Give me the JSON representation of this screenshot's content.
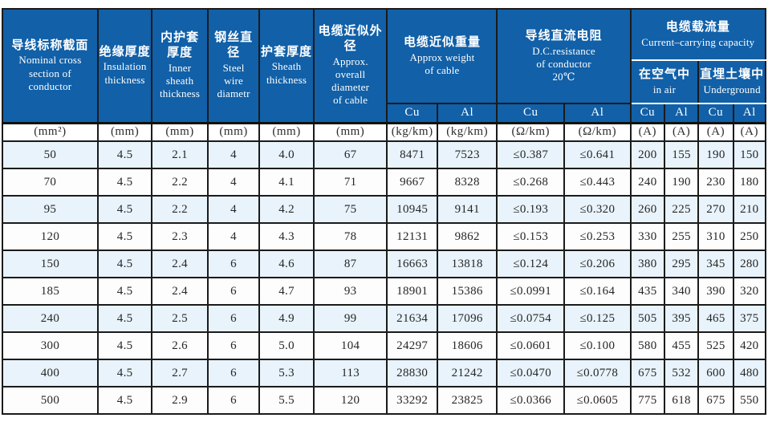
{
  "table": {
    "header": {
      "col1": {
        "zh": "导线标称截面",
        "en": "Nominal  cross\nsection of\nconductor"
      },
      "col2": {
        "zh": "绝缘厚度",
        "en": "Insulation\nthickness"
      },
      "col3": {
        "zh": "内护套\n厚度",
        "en": "Inner\nsheath\nthickness"
      },
      "col4": {
        "zh": "钢丝直径",
        "en": "Steel\nwire\ndiametr"
      },
      "col5": {
        "zh": "护套厚度",
        "en": "Sheath\nthickness"
      },
      "col6": {
        "zh": "电缆近似外径",
        "en": "Approx.\noverall\ndiameter\nof cable"
      },
      "weight": {
        "zh": "电缆近似重量",
        "en": "Approx weight\nof cable"
      },
      "resistance": {
        "zh": "导线直流电阻",
        "en": "D.C.resistance\nof conductor\n20℃"
      },
      "capacity": {
        "zh": "电缆载流量",
        "en": "Current–carrying capacity"
      },
      "in_air": {
        "zh": "在空气中",
        "en": "in air"
      },
      "underground": {
        "zh": "直埋土壤中",
        "en": "Underground"
      },
      "metals": [
        "Cu",
        "Al",
        "Cu",
        "Al",
        "Cu",
        "Al",
        "Cu",
        "Al"
      ]
    },
    "units": [
      "(mm²)",
      "(mm)",
      "(mm)",
      "(mm)",
      "(mm)",
      "(mm)",
      "(kg/km)",
      "(kg/km)",
      "(Ω/km)",
      "(Ω/km)",
      "(A)",
      "(A)",
      "(A)",
      "(A)"
    ],
    "rows": [
      [
        "50",
        "4.5",
        "2.1",
        "4",
        "4.0",
        "67",
        "8471",
        "7523",
        "≤0.387",
        "≤0.641",
        "200",
        "155",
        "190",
        "150"
      ],
      [
        "70",
        "4.5",
        "2.2",
        "4",
        "4.1",
        "71",
        "9667",
        "8328",
        "≤0.268",
        "≤0.443",
        "240",
        "190",
        "230",
        "180"
      ],
      [
        "95",
        "4.5",
        "2.2",
        "4",
        "4.2",
        "75",
        "10945",
        "9141",
        "≤0.193",
        "≤0.320",
        "260",
        "225",
        "270",
        "210"
      ],
      [
        "120",
        "4.5",
        "2.3",
        "4",
        "4.3",
        "78",
        "12131",
        "9862",
        "≤0.153",
        "≤0.253",
        "330",
        "255",
        "310",
        "250"
      ],
      [
        "150",
        "4.5",
        "2.4",
        "6",
        "4.6",
        "87",
        "16663",
        "13818",
        "≤0.124",
        "≤0.206",
        "380",
        "295",
        "345",
        "280"
      ],
      [
        "185",
        "4.5",
        "2.4",
        "6",
        "4.7",
        "93",
        "18901",
        "15386",
        "≤0.0991",
        "≤0.164",
        "435",
        "340",
        "390",
        "320"
      ],
      [
        "240",
        "4.5",
        "2.5",
        "6",
        "4.9",
        "99",
        "21634",
        "17096",
        "≤0.0754",
        "≤0.125",
        "505",
        "395",
        "465",
        "375"
      ],
      [
        "300",
        "4.5",
        "2.6",
        "6",
        "5.0",
        "104",
        "24297",
        "18606",
        "≤0.0601",
        "≤0.100",
        "580",
        "455",
        "525",
        "420"
      ],
      [
        "400",
        "4.5",
        "2.7",
        "6",
        "5.3",
        "113",
        "28830",
        "21242",
        "≤0.0470",
        "≤0.0778",
        "675",
        "532",
        "600",
        "480"
      ],
      [
        "500",
        "4.5",
        "2.9",
        "6",
        "5.5",
        "120",
        "33292",
        "23825",
        "≤0.0366",
        "≤0.0605",
        "775",
        "618",
        "675",
        "550"
      ]
    ],
    "colors": {
      "header_blue": "#1160a8",
      "row_alt_blue": "#e8f3fb",
      "border_black": "#1b1b1b"
    }
  }
}
